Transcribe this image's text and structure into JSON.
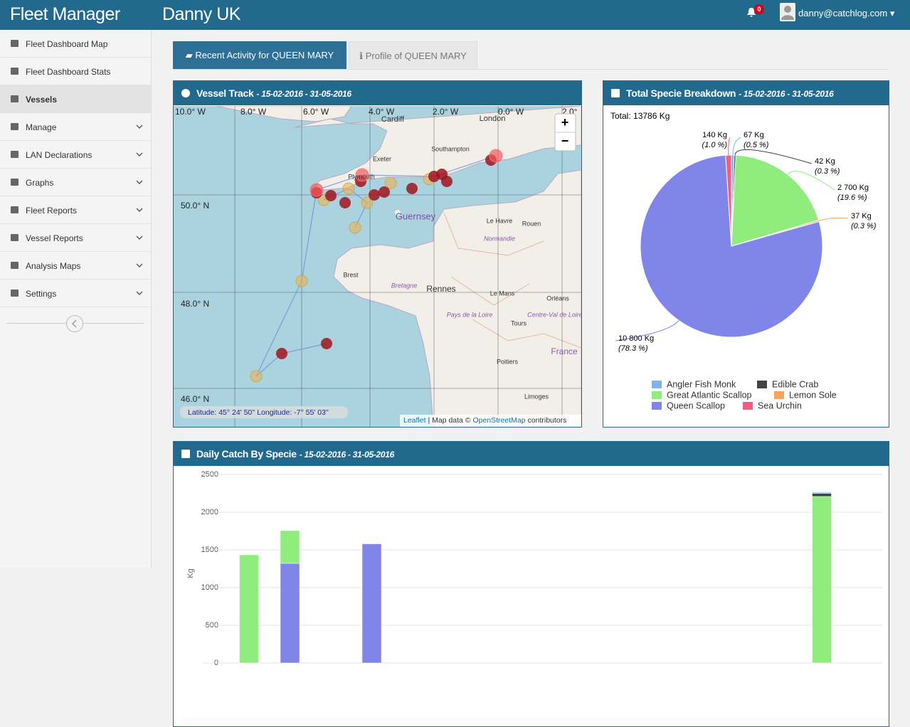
{
  "header": {
    "brand": "Fleet Manager",
    "title": "Danny UK",
    "notifications": "0",
    "user": "danny@catchlog.com"
  },
  "sidebar": {
    "active_index": 2,
    "items": [
      {
        "label": "Fleet Dashboard Map",
        "submenu": false
      },
      {
        "label": "Fleet Dashboard Stats",
        "submenu": false
      },
      {
        "label": "Vessels",
        "submenu": false
      },
      {
        "label": "Manage",
        "submenu": true
      },
      {
        "label": "LAN Declarations",
        "submenu": true
      },
      {
        "label": "Graphs",
        "submenu": true
      },
      {
        "label": "Fleet Reports",
        "submenu": true
      },
      {
        "label": "Vessel Reports",
        "submenu": true
      },
      {
        "label": "Analysis Maps",
        "submenu": true
      },
      {
        "label": "Settings",
        "submenu": true
      }
    ]
  },
  "tabs": [
    "Recent Activity for QUEEN MARY",
    "Profile of QUEEN MARY"
  ],
  "map": {
    "title": "Vessel Track",
    "subtitle": "- 15-02-2016 - 31-05-2016",
    "lon_labels": [
      "10.0° W",
      "8.0° W",
      "6.0° W",
      "4.0° W",
      "2.0° W",
      "0.0° W",
      "2.0°"
    ],
    "lat_labels": [
      "50.0° N",
      "48.0° N",
      "46.0° N"
    ],
    "places": [
      "Cardiff",
      "London",
      "Exeter",
      "Southampton",
      "Plymouth",
      "Guernsey",
      "Le Havre",
      "Rouen",
      "Normandie",
      "Brest",
      "Bretagne",
      "Rennes",
      "Le Mans",
      "Orléans",
      "Pays de la Loire",
      "Centre-Val de Loire",
      "Tours",
      "France",
      "Poitiers",
      "Limoges"
    ],
    "zoom_in": "+",
    "zoom_out": "−",
    "coords": "Latitude: 45° 24' 50'' Longitude: -7° 55' 03''",
    "attribution": {
      "leaflet": "Leaflet",
      "sep": "| Map data ©",
      "osm": "OpenStreetMap",
      "tail": "contributors"
    }
  },
  "chart_data": [
    {
      "type": "pie",
      "title": "Total Specie Breakdown",
      "subtitle": "- 15-02-2016 - 31-05-2016",
      "total_label": "Total: 13786 Kg",
      "categories": [
        "Angler Fish Monk",
        "Edible Crab",
        "Great Atlantic Scallop",
        "Lemon Sole",
        "Queen Scallop",
        "Sea Urchin"
      ],
      "values": [
        67,
        42,
        2700,
        37,
        10800,
        140
      ],
      "value_labels": [
        "67 Kg",
        "42 Kg",
        "2 700 Kg",
        "37 Kg",
        "10 800 Kg",
        "140 Kg"
      ],
      "percent_labels": [
        "(0.5 %)",
        "(0.3 %)",
        "(19.6 %)",
        "(0.3 %)",
        "(78.3 %)",
        "(1.0 %)"
      ],
      "colors": [
        "#7cb5ec",
        "#434348",
        "#90ed7d",
        "#f7a35c",
        "#8085e9",
        "#f15c80"
      ]
    },
    {
      "type": "bar",
      "title": "Daily Catch By Specie",
      "subtitle": "- 15-02-2016 - 31-05-2016",
      "y_label": "Kg",
      "stacked": true,
      "categories": [
        null,
        null,
        null,
        null,
        null,
        null,
        null,
        null,
        null,
        null,
        null,
        null,
        null,
        null,
        null,
        null,
        null
      ],
      "ylim": [
        0,
        2500
      ],
      "yticks": [
        0,
        500,
        1000,
        1500,
        2000,
        2500
      ],
      "grid": true,
      "series": [
        {
          "name": "Angler Fish Monk",
          "color": "#7cb5ec",
          "values": [
            null,
            null,
            null,
            null,
            null,
            null,
            null,
            null,
            null,
            null,
            null,
            null,
            null,
            null,
            null,
            16,
            null
          ]
        },
        {
          "name": "Edible Crab",
          "color": "#434348",
          "values": [
            null,
            null,
            null,
            null,
            null,
            null,
            null,
            null,
            null,
            null,
            null,
            null,
            null,
            null,
            null,
            40,
            null
          ]
        },
        {
          "name": "Great Atlantic Scallop",
          "color": "#90ed7d",
          "values": [
            null,
            1434,
            434,
            null,
            null,
            null,
            null,
            null,
            null,
            null,
            null,
            null,
            null,
            null,
            null,
            2208,
            null
          ]
        },
        {
          "name": "Lemon Sole",
          "color": "#f7a35c",
          "values": [
            null,
            null,
            null,
            null,
            null,
            null,
            null,
            null,
            null,
            null,
            null,
            null,
            null,
            null,
            null,
            null,
            null
          ]
        },
        {
          "name": "Queen Scallop",
          "color": "#8085e9",
          "values": [
            null,
            null,
            1321,
            null,
            1580,
            null,
            null,
            null,
            null,
            null,
            null,
            null,
            null,
            null,
            null,
            null,
            null
          ]
        },
        {
          "name": "Sea Urchin",
          "color": "#f15c80",
          "values": [
            null,
            null,
            null,
            null,
            null,
            null,
            null,
            null,
            null,
            null,
            null,
            null,
            null,
            null,
            null,
            null,
            null
          ]
        }
      ]
    }
  ]
}
